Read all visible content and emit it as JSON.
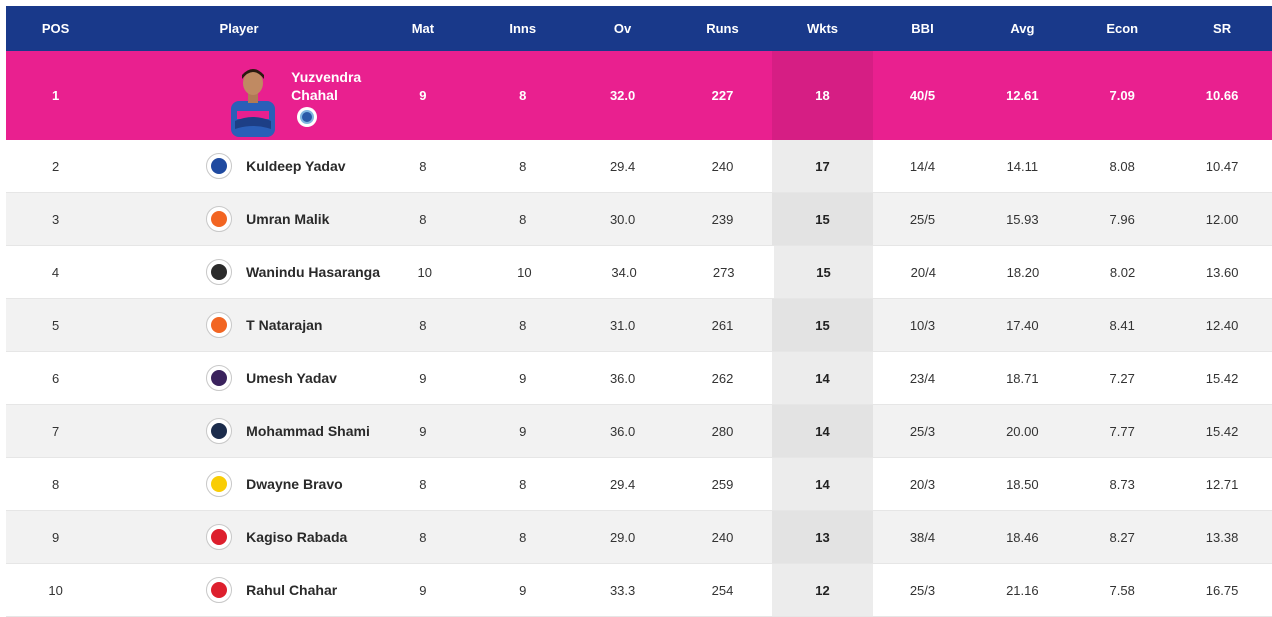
{
  "headers": {
    "pos": "POS",
    "player": "Player",
    "mat": "Mat",
    "inns": "Inns",
    "ov": "Ov",
    "runs": "Runs",
    "wkts": "Wkts",
    "bbi": "BBI",
    "avg": "Avg",
    "econ": "Econ",
    "sr": "SR"
  },
  "leader": {
    "pos": "1",
    "name_line1": "Yuzvendra",
    "name_line2": "Chahal",
    "mat": "9",
    "inns": "8",
    "ov": "32.0",
    "runs": "227",
    "wkts": "18",
    "bbi": "40/5",
    "avg": "12.61",
    "econ": "7.09",
    "sr": "10.66",
    "team_color": "#254aa5"
  },
  "rows": [
    {
      "pos": "2",
      "name": "Kuldeep Yadav",
      "mat": "8",
      "inns": "8",
      "ov": "29.4",
      "runs": "240",
      "wkts": "17",
      "bbi": "14/4",
      "avg": "14.11",
      "econ": "8.08",
      "sr": "10.47",
      "team_color": "#1f4aa0"
    },
    {
      "pos": "3",
      "name": "Umran Malik",
      "mat": "8",
      "inns": "8",
      "ov": "30.0",
      "runs": "239",
      "wkts": "15",
      "bbi": "25/5",
      "avg": "15.93",
      "econ": "7.96",
      "sr": "12.00",
      "team_color": "#f26522"
    },
    {
      "pos": "4",
      "name": "Wanindu Hasaranga",
      "mat": "10",
      "inns": "10",
      "ov": "34.0",
      "runs": "273",
      "wkts": "15",
      "bbi": "20/4",
      "avg": "18.20",
      "econ": "8.02",
      "sr": "13.60",
      "team_color": "#2b2b2b"
    },
    {
      "pos": "5",
      "name": "T Natarajan",
      "mat": "8",
      "inns": "8",
      "ov": "31.0",
      "runs": "261",
      "wkts": "15",
      "bbi": "10/3",
      "avg": "17.40",
      "econ": "8.41",
      "sr": "12.40",
      "team_color": "#f26522"
    },
    {
      "pos": "6",
      "name": "Umesh Yadav",
      "mat": "9",
      "inns": "9",
      "ov": "36.0",
      "runs": "262",
      "wkts": "14",
      "bbi": "23/4",
      "avg": "18.71",
      "econ": "7.27",
      "sr": "15.42",
      "team_color": "#3a225d"
    },
    {
      "pos": "7",
      "name": "Mohammad Shami",
      "mat": "9",
      "inns": "9",
      "ov": "36.0",
      "runs": "280",
      "wkts": "14",
      "bbi": "25/3",
      "avg": "20.00",
      "econ": "7.77",
      "sr": "15.42",
      "team_color": "#1c2c4c"
    },
    {
      "pos": "8",
      "name": "Dwayne Bravo",
      "mat": "8",
      "inns": "8",
      "ov": "29.4",
      "runs": "259",
      "wkts": "14",
      "bbi": "20/3",
      "avg": "18.50",
      "econ": "8.73",
      "sr": "12.71",
      "team_color": "#f9cd05"
    },
    {
      "pos": "9",
      "name": "Kagiso Rabada",
      "mat": "8",
      "inns": "8",
      "ov": "29.0",
      "runs": "240",
      "wkts": "13",
      "bbi": "38/4",
      "avg": "18.46",
      "econ": "8.27",
      "sr": "13.38",
      "team_color": "#dd1f2d"
    },
    {
      "pos": "10",
      "name": "Rahul Chahar",
      "mat": "9",
      "inns": "9",
      "ov": "33.3",
      "runs": "254",
      "wkts": "12",
      "bbi": "25/3",
      "avg": "21.16",
      "econ": "7.58",
      "sr": "16.75",
      "team_color": "#dd1f2d"
    }
  ],
  "colors": {
    "header_bg": "#19398a",
    "leader_bg": "#e9208f"
  }
}
